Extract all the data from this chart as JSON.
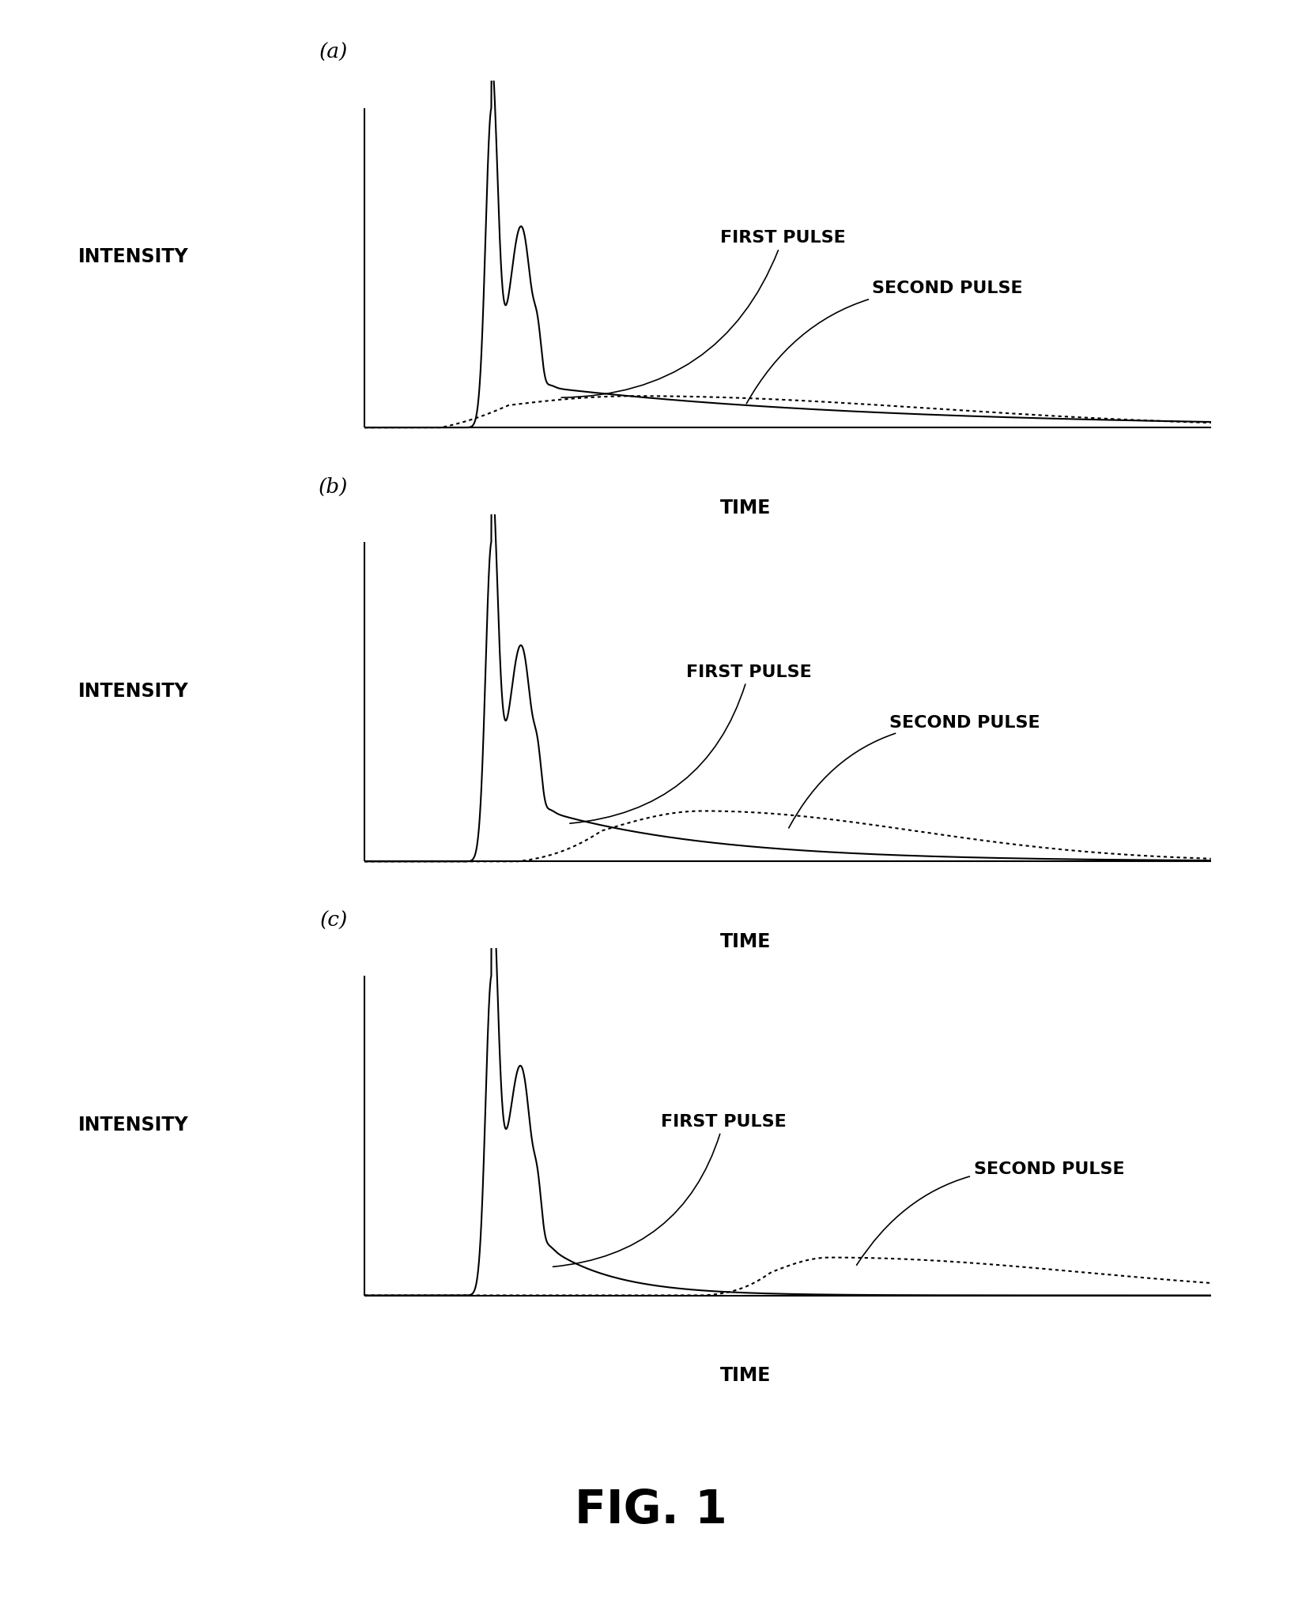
{
  "title": "FIG. 1",
  "panels": [
    "(a)",
    "(b)",
    "(c)"
  ],
  "intensity_label": "INTENSITY",
  "time_label": "TIME",
  "first_pulse_label": "FIRST PULSE",
  "second_pulse_label": "SECOND PULSE",
  "background_color": "#ffffff",
  "line_color": "#000000",
  "figsize": [
    16.47,
    20.34
  ],
  "dpi": 100
}
